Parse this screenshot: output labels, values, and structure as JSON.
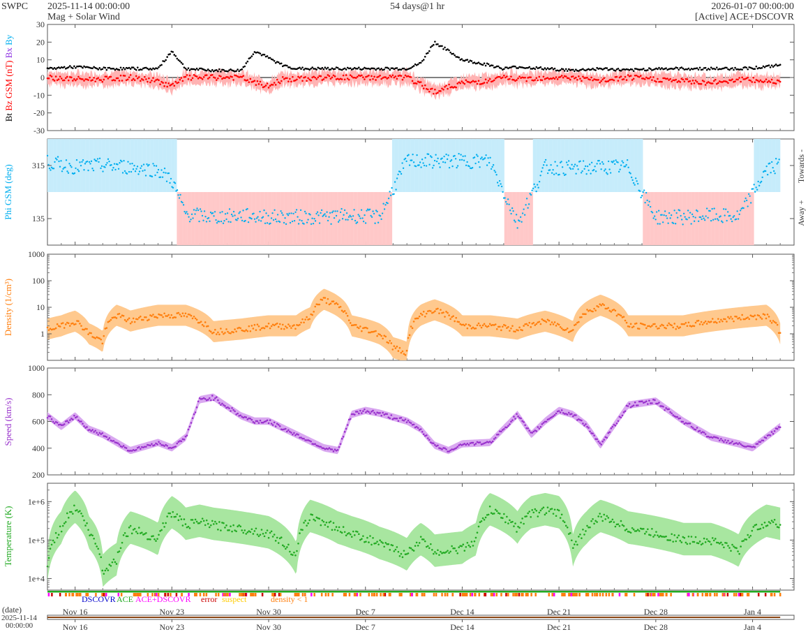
{
  "header": {
    "agency": "SWPC",
    "start_time": "2025-11-14 00:00:00",
    "product": "Mag + Solar Wind",
    "span": "54 days@1 hr",
    "end_time": "2026-01-07 00:00:00",
    "source": "[Active] ACE+DSCOVR"
  },
  "colors": {
    "bt": "#000000",
    "bz": "#ff0000",
    "bz_fill": "#ffb3b3",
    "bx": "#8a2be2",
    "by": "#00aeef",
    "phi": "#00aeef",
    "towards_fill": "#c6ecfb",
    "away_fill": "#ffc8c8",
    "density": "#ff7f0e",
    "density_fill": "#ffc98e",
    "speed": "#9932cc",
    "speed_fill": "#d9a8f0",
    "temperature": "#22aa22",
    "temperature_fill": "#a8e6a0",
    "dscovr": "#0000cc",
    "ace": "#22aa22",
    "ace_dscovr": "#ff00ff",
    "error": "#cc0000",
    "suspect": "#ffcc00",
    "density_lt1": "#ff7f0e"
  },
  "legend": {
    "dscovr": "DSCOVR",
    "ace": "ACE",
    "ace_dscovr": "ACE+DSCOVR",
    "error": "error",
    "suspect": "suspect",
    "density_lt1": "density < 1"
  },
  "timeline": {
    "label": "(date)",
    "start_date": "2025-11-14",
    "start_time": "00:00:00"
  },
  "chart_data": [
    {
      "type": "line",
      "panel": "mag",
      "ylabel_parts": [
        "Bt",
        "Bz GSM (nT)",
        "Bx",
        "By"
      ],
      "ylim": [
        -30,
        30
      ],
      "yticks": [
        30,
        20,
        10,
        0,
        -10,
        -20,
        -30
      ],
      "x_start": "2025-11-14",
      "x_end": "2026-01-07",
      "x_ticks": [
        "Nov 16",
        "Nov 23",
        "Nov 30",
        "Dec 7",
        "Dec 14",
        "Dec 21",
        "Dec 28",
        "Jan 4"
      ],
      "series": [
        {
          "name": "Bt",
          "day": [
            0,
            2,
            4,
            6,
            8,
            9,
            10,
            12,
            14,
            15,
            16,
            17,
            18,
            20,
            22,
            24,
            26,
            27,
            28,
            30,
            32,
            33,
            34,
            36,
            38,
            40,
            42,
            44,
            46,
            48,
            50,
            52,
            53
          ],
          "values": [
            5,
            6,
            5,
            5,
            5,
            15,
            5,
            4,
            4,
            15,
            11,
            7,
            5,
            5,
            5,
            5,
            5,
            8,
            20,
            10,
            7,
            5,
            6,
            5,
            4,
            5,
            4,
            5,
            5,
            5,
            5,
            6,
            7
          ]
        },
        {
          "name": "Bz GSM",
          "day": [
            0,
            2,
            4,
            6,
            8,
            9,
            10,
            12,
            14,
            15,
            16,
            17,
            18,
            20,
            22,
            24,
            26,
            27,
            28,
            30,
            32,
            33,
            34,
            36,
            38,
            40,
            42,
            44,
            46,
            48,
            50,
            52,
            53
          ],
          "values": [
            0,
            -1,
            -1,
            0,
            -2,
            -5,
            0,
            0,
            0,
            -3,
            -5,
            -1,
            -1,
            0,
            0,
            0,
            0,
            -4,
            -8,
            -3,
            -2,
            0,
            -1,
            0,
            0,
            -2,
            0,
            -1,
            -2,
            -3,
            -1,
            -2,
            -2
          ]
        }
      ]
    },
    {
      "type": "scatter",
      "panel": "phi",
      "ylabel": "Phi GSM (deg)",
      "ylim": [
        45,
        405
      ],
      "yticks": [
        315,
        135
      ],
      "side_labels": [
        "Towards -",
        "Away +"
      ],
      "day": [
        0,
        2,
        4,
        6,
        8,
        9,
        10,
        12,
        14,
        16,
        18,
        20,
        22,
        24,
        26,
        27,
        28,
        30,
        32,
        34,
        36,
        38,
        40,
        42,
        44,
        46,
        48,
        50,
        52,
        53
      ],
      "values": [
        325,
        310,
        315,
        310,
        300,
        265,
        150,
        140,
        145,
        140,
        140,
        140,
        145,
        140,
        330,
        330,
        330,
        330,
        330,
        120,
        310,
        305,
        310,
        310,
        140,
        140,
        145,
        140,
        300,
        320
      ]
    },
    {
      "type": "line",
      "panel": "density",
      "ylabel": "Density (1/cm³)",
      "yscale": "log",
      "ylim": [
        0.1,
        1000
      ],
      "yticks": [
        1000,
        100,
        10,
        1
      ],
      "day": [
        0,
        1,
        2,
        3,
        4,
        5,
        6,
        8,
        10,
        12,
        14,
        16,
        18,
        19,
        20,
        22,
        24,
        25,
        26,
        27,
        28,
        29,
        30,
        31,
        32,
        34,
        36,
        38,
        40,
        42,
        44,
        46,
        48,
        50,
        52,
        53
      ],
      "values": [
        1.5,
        2,
        3,
        1,
        0.5,
        5,
        3,
        5,
        5,
        1.2,
        1.5,
        2,
        2,
        4,
        20,
        2,
        1,
        0.3,
        0.2,
        5,
        8,
        5,
        2,
        2,
        2,
        1.5,
        3,
        1.2,
        12,
        2,
        2,
        2,
        3,
        4,
        5,
        1
      ]
    },
    {
      "type": "line",
      "panel": "speed",
      "ylabel": "Speed (km/s)",
      "ylim": [
        200,
        1000
      ],
      "yticks": [
        1000,
        800,
        600,
        400,
        200
      ],
      "day": [
        0,
        1,
        2,
        3,
        4,
        6,
        8,
        9,
        10,
        11,
        12,
        14,
        15,
        16,
        18,
        20,
        21,
        22,
        23,
        24,
        26,
        27,
        28,
        29,
        30,
        32,
        34,
        35,
        36,
        37,
        38,
        39,
        40,
        42,
        44,
        46,
        48,
        50,
        51,
        52,
        53
      ],
      "values": [
        640,
        560,
        640,
        540,
        500,
        380,
        440,
        400,
        480,
        760,
        780,
        640,
        600,
        600,
        500,
        400,
        380,
        650,
        680,
        660,
        600,
        540,
        420,
        380,
        430,
        440,
        650,
        500,
        600,
        680,
        650,
        570,
        420,
        720,
        750,
        600,
        480,
        430,
        400,
        480,
        560
      ]
    },
    {
      "type": "line",
      "panel": "temperature",
      "ylabel": "Temperature (K)",
      "yscale": "log",
      "ylim": [
        5000,
        3000000
      ],
      "yticks": [
        "1e+6",
        "1e+5",
        "1e+4"
      ],
      "day": [
        0,
        1,
        2,
        3,
        4,
        5,
        6,
        7,
        8,
        9,
        10,
        11,
        12,
        14,
        16,
        18,
        19,
        20,
        21,
        22,
        24,
        26,
        27,
        28,
        30,
        31,
        32,
        34,
        35,
        36,
        37,
        38,
        39,
        40,
        42,
        44,
        46,
        48,
        50,
        52,
        53
      ],
      "values": [
        20000,
        200000,
        700000,
        150000,
        15000,
        30000,
        200000,
        150000,
        100000,
        500000,
        250000,
        300000,
        250000,
        200000,
        150000,
        30000,
        400000,
        300000,
        200000,
        150000,
        80000,
        40000,
        100000,
        50000,
        60000,
        100000,
        600000,
        200000,
        500000,
        600000,
        500000,
        50000,
        200000,
        400000,
        200000,
        150000,
        100000,
        100000,
        50000,
        300000,
        250000
      ]
    }
  ]
}
